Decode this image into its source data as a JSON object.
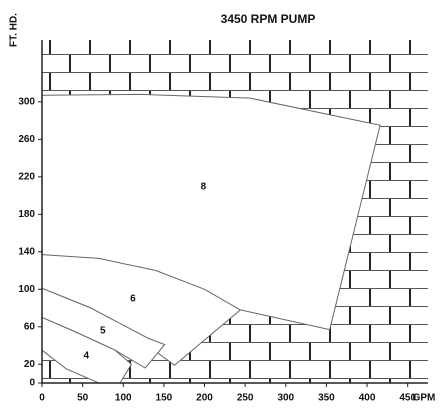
{
  "chart_data": {
    "type": "region",
    "title": "3450 RPM PUMP",
    "y_label": "FT. HD.",
    "x_label": "GPM",
    "xlim": [
      0,
      475
    ],
    "ylim": [
      0,
      366
    ],
    "xticks": [
      0,
      50,
      100,
      150,
      200,
      250,
      300,
      350,
      400,
      450
    ],
    "yticks": [
      0,
      20,
      60,
      100,
      140,
      180,
      220,
      260,
      300
    ],
    "series": [
      {
        "name": "8",
        "x": [
          0,
          120,
          256,
          416,
          354,
          244,
          0
        ],
        "y": [
          307,
          308,
          304,
          275,
          57,
          78,
          137
        ]
      },
      {
        "name": "6",
        "x": [
          0,
          70,
          140,
          200,
          244,
          163,
          130,
          60,
          0
        ],
        "y": [
          137,
          133,
          120,
          100,
          78,
          19,
          40,
          80,
          101
        ]
      },
      {
        "name": "5",
        "x": [
          0,
          60,
          130,
          151,
          127,
          90,
          40,
          0
        ],
        "y": [
          101,
          80,
          48,
          41,
          16,
          35,
          55,
          70
        ]
      },
      {
        "name": "4",
        "x": [
          0,
          40,
          90,
          110,
          96,
          70,
          30,
          0
        ],
        "y": [
          70,
          55,
          35,
          20,
          0,
          0,
          15,
          35
        ]
      }
    ]
  }
}
